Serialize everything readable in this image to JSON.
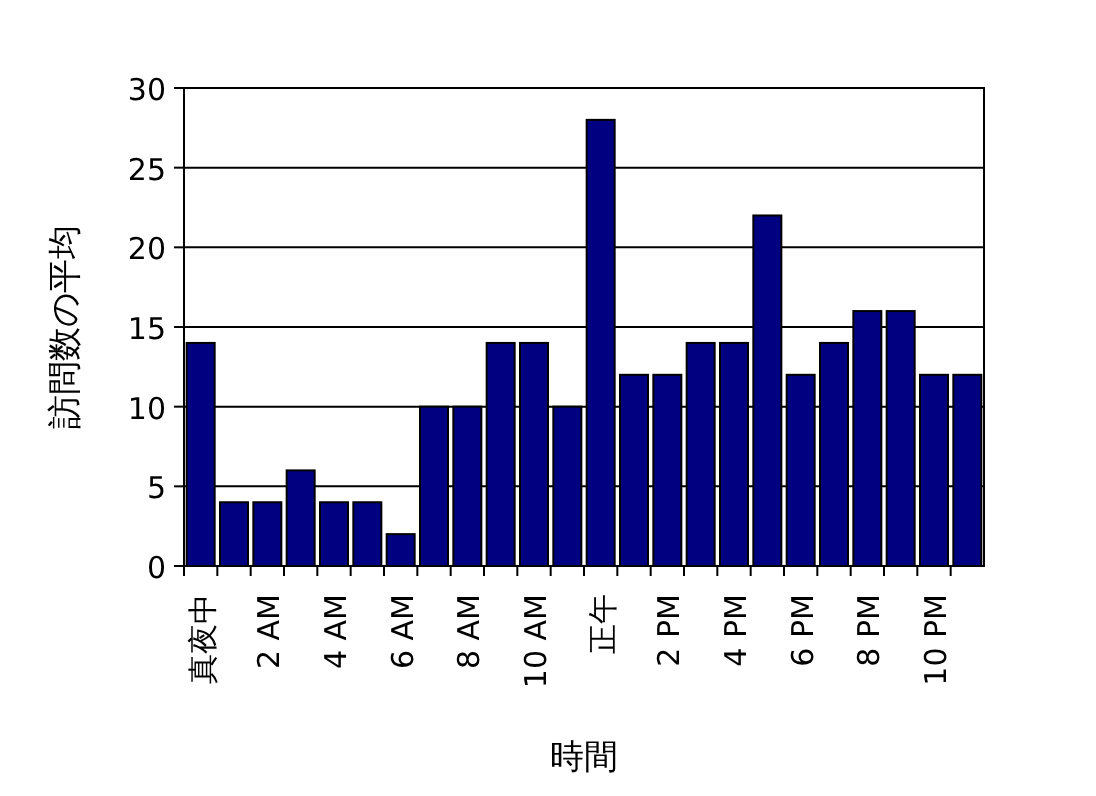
{
  "chart_data": {
    "type": "bar",
    "xlabel": "時間",
    "ylabel": "訪問数の平均",
    "categories": [
      "真夜中",
      null,
      "2 AM",
      null,
      "4 AM",
      null,
      "6 AM",
      null,
      "8 AM",
      null,
      "10 AM",
      null,
      "正午",
      null,
      "2 PM",
      null,
      "4 PM",
      null,
      "6 PM",
      null,
      "8 PM",
      null,
      "10 PM",
      null
    ],
    "values": [
      14,
      4,
      4,
      6,
      4,
      4,
      2,
      10,
      10,
      14,
      14,
      10,
      28,
      12,
      12,
      14,
      14,
      22,
      12,
      14,
      16,
      16,
      12,
      12
    ],
    "color": "#000080",
    "ylim": [
      0,
      30
    ],
    "yticks": [
      0,
      5,
      10,
      15,
      20,
      25,
      30
    ],
    "grid": "y"
  }
}
